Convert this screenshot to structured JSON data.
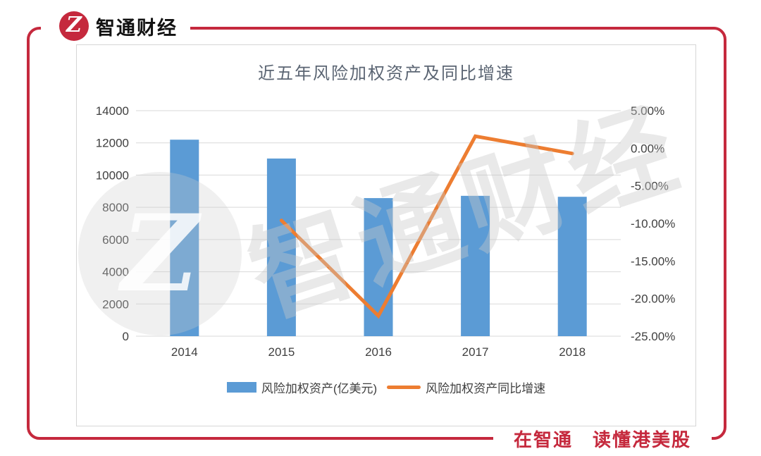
{
  "colors": {
    "brand_red": "#c5293d",
    "bar": "#5b9bd5",
    "line": "#ed7d31",
    "grid": "#d9d9d9",
    "axis_text": "#404040",
    "title_text": "#5b6573"
  },
  "logo": {
    "brand": "智通财经",
    "glyph": "Z"
  },
  "slogan": "在智通　读懂港美股",
  "watermark": {
    "text": "智通财经",
    "glyph": "Z"
  },
  "chart_data": {
    "type": "bar",
    "subtype": "combo-bar-line",
    "title": "近五年风险加权资产及同比增速",
    "categories": [
      "2014",
      "2015",
      "2016",
      "2017",
      "2018"
    ],
    "series": [
      {
        "name": "风险加权资产(亿美元)",
        "type": "bar",
        "axis": "left",
        "values": [
          12198,
          11029,
          8572,
          8713,
          8653
        ]
      },
      {
        "name": "风险加权资产同比增速",
        "type": "line",
        "axis": "right",
        "values": [
          null,
          -9.6,
          -22.3,
          1.6,
          -0.7
        ]
      }
    ],
    "left_axis": {
      "min": 0,
      "max": 14000,
      "step": 2000,
      "tick_values": [
        14000,
        12000,
        10000,
        8000,
        6000,
        4000,
        2000,
        0
      ],
      "tick_labels": [
        "14000",
        "12000",
        "10000",
        "8000",
        "6000",
        "4000",
        "2000",
        "0"
      ]
    },
    "right_axis": {
      "min": -25,
      "max": 5,
      "step": 5,
      "tick_values": [
        5,
        0,
        -5,
        -10,
        -15,
        -20,
        -25
      ],
      "tick_labels": [
        "5.00%",
        "0.00%",
        "-5.00%",
        "-10.00%",
        "-15.00%",
        "-20.00%",
        "-25.00%"
      ]
    },
    "grid": true,
    "legend_position": "bottom"
  }
}
